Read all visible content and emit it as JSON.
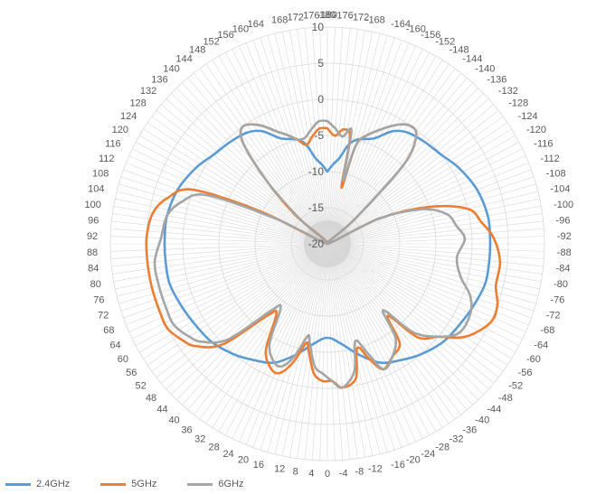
{
  "chart_data": {
    "type": "radar",
    "angular_ticks": [
      -180,
      -176,
      -172,
      -168,
      -164,
      -160,
      -156,
      -152,
      -148,
      -144,
      -140,
      -136,
      -132,
      -128,
      -124,
      -120,
      -116,
      -112,
      -108,
      -104,
      -100,
      -96,
      -92,
      -88,
      -84,
      -80,
      -76,
      -72,
      -68,
      -64,
      -60,
      -56,
      -52,
      -48,
      -44,
      -40,
      -36,
      -32,
      -28,
      -24,
      -20,
      -16,
      -12,
      -8,
      -4,
      0,
      4,
      8,
      12,
      16,
      20,
      24,
      28,
      32,
      36,
      40,
      44,
      48,
      52,
      56,
      60,
      64,
      68,
      72,
      76,
      80,
      84,
      88,
      92,
      96,
      100,
      104,
      108,
      112,
      116,
      120,
      124,
      128,
      132,
      136,
      140,
      144,
      148,
      152,
      156,
      160,
      164,
      168,
      172,
      176,
      180
    ],
    "radial_ticks": [
      -20,
      -15,
      -10,
      -5,
      0,
      5,
      10
    ],
    "rlim": [
      -20,
      10
    ],
    "grid": true,
    "legend_position": "bottom-left",
    "series": [
      {
        "name": "2.4GHz",
        "color": "#5b9bd5",
        "points": [
          [
            -180,
            -10
          ],
          [
            -176,
            -9
          ],
          [
            -172,
            -8
          ],
          [
            -168,
            -6
          ],
          [
            -164,
            -5
          ],
          [
            -156,
            -4
          ],
          [
            -150,
            -2
          ],
          [
            -144,
            -1
          ],
          [
            -136,
            -0.5
          ],
          [
            -128,
            0
          ],
          [
            -120,
            1
          ],
          [
            -110,
            2
          ],
          [
            -100,
            2.5
          ],
          [
            -92,
            2.5
          ],
          [
            -84,
            2.5
          ],
          [
            -76,
            2.5
          ],
          [
            -68,
            2
          ],
          [
            -60,
            1.5
          ],
          [
            -50,
            1
          ],
          [
            -40,
            0
          ],
          [
            -32,
            -1
          ],
          [
            -24,
            -2
          ],
          [
            -16,
            -4
          ],
          [
            -8,
            -6
          ],
          [
            0,
            -7
          ],
          [
            8,
            -6
          ],
          [
            16,
            -4
          ],
          [
            24,
            -2
          ],
          [
            32,
            -1
          ],
          [
            40,
            0
          ],
          [
            50,
            1
          ],
          [
            60,
            1.5
          ],
          [
            68,
            2
          ],
          [
            76,
            2.5
          ],
          [
            84,
            2.5
          ],
          [
            92,
            2.5
          ],
          [
            100,
            2.5
          ],
          [
            110,
            2
          ],
          [
            120,
            1
          ],
          [
            128,
            0
          ],
          [
            136,
            -0.5
          ],
          [
            144,
            -1
          ],
          [
            150,
            -2
          ],
          [
            156,
            -4
          ],
          [
            164,
            -5
          ],
          [
            168,
            -6
          ],
          [
            172,
            -8
          ],
          [
            176,
            -9
          ],
          [
            180,
            -10
          ]
        ]
      },
      {
        "name": "5GHz",
        "color": "#ed7d31",
        "points": [
          [
            -180,
            -4
          ],
          [
            -176,
            -5
          ],
          [
            -172,
            -4
          ],
          [
            -168,
            -5
          ],
          [
            -166,
            -12
          ],
          [
            -164,
            -6
          ],
          [
            -160,
            -4
          ],
          [
            -150,
            -1
          ],
          [
            -144,
            0
          ],
          [
            -140,
            -1
          ],
          [
            -136,
            -5
          ],
          [
            -132,
            -15
          ],
          [
            -124,
            -20
          ],
          [
            -116,
            -12
          ],
          [
            -110,
            -5
          ],
          [
            -104,
            0
          ],
          [
            -98,
            1.5
          ],
          [
            -92,
            3
          ],
          [
            -84,
            4
          ],
          [
            -76,
            4
          ],
          [
            -70,
            5
          ],
          [
            -64,
            5
          ],
          [
            -56,
            3
          ],
          [
            -50,
            0
          ],
          [
            -44,
            -2
          ],
          [
            -40,
            -7
          ],
          [
            -36,
            -3
          ],
          [
            -30,
            -2
          ],
          [
            -24,
            -1
          ],
          [
            -20,
            -3
          ],
          [
            -16,
            -5
          ],
          [
            -12,
            -1
          ],
          [
            -6,
            0
          ],
          [
            -2,
            -1
          ],
          [
            2,
            -1
          ],
          [
            6,
            -2
          ],
          [
            10,
            -5
          ],
          [
            12,
            -6
          ],
          [
            16,
            -3
          ],
          [
            20,
            -1
          ],
          [
            24,
            -1
          ],
          [
            30,
            -3
          ],
          [
            36,
            -8
          ],
          [
            40,
            -7
          ],
          [
            46,
            0
          ],
          [
            52,
            3
          ],
          [
            56,
            4
          ],
          [
            62,
            5
          ],
          [
            68,
            5
          ],
          [
            76,
            5
          ],
          [
            84,
            5
          ],
          [
            92,
            5
          ],
          [
            100,
            4.5
          ],
          [
            106,
            3
          ],
          [
            112,
            0
          ],
          [
            116,
            -10
          ],
          [
            124,
            -20
          ],
          [
            132,
            -14
          ],
          [
            136,
            -8
          ],
          [
            140,
            -2
          ],
          [
            144,
            0
          ],
          [
            150,
            -1
          ],
          [
            156,
            -3
          ],
          [
            160,
            -4
          ],
          [
            164,
            -5
          ],
          [
            168,
            -6
          ],
          [
            172,
            -5
          ],
          [
            176,
            -4
          ],
          [
            180,
            -4
          ]
        ]
      },
      {
        "name": "6GHz",
        "color": "#a5a5a5",
        "points": [
          [
            -180,
            -3
          ],
          [
            -176,
            -4
          ],
          [
            -172,
            -5
          ],
          [
            -168,
            -4
          ],
          [
            -166,
            -11
          ],
          [
            -164,
            -6
          ],
          [
            -160,
            -4
          ],
          [
            -150,
            -1
          ],
          [
            -144,
            0
          ],
          [
            -140,
            -1
          ],
          [
            -136,
            -5
          ],
          [
            -132,
            -15
          ],
          [
            -124,
            -20
          ],
          [
            -116,
            -12
          ],
          [
            -110,
            -6
          ],
          [
            -104,
            -3
          ],
          [
            -98,
            -2
          ],
          [
            -92,
            -1
          ],
          [
            -84,
            -2
          ],
          [
            -76,
            -1
          ],
          [
            -70,
            1
          ],
          [
            -64,
            2
          ],
          [
            -56,
            2
          ],
          [
            -50,
            0
          ],
          [
            -44,
            -3
          ],
          [
            -40,
            -8
          ],
          [
            -36,
            -4
          ],
          [
            -30,
            -2
          ],
          [
            -24,
            -1
          ],
          [
            -20,
            -4
          ],
          [
            -16,
            -6
          ],
          [
            -12,
            -2
          ],
          [
            -6,
            0
          ],
          [
            -2,
            -1
          ],
          [
            2,
            -2
          ],
          [
            6,
            -3
          ],
          [
            10,
            -6
          ],
          [
            12,
            -7
          ],
          [
            16,
            -4
          ],
          [
            20,
            -2
          ],
          [
            24,
            -2
          ],
          [
            30,
            -4
          ],
          [
            36,
            -9
          ],
          [
            40,
            -8
          ],
          [
            46,
            -1
          ],
          [
            52,
            2
          ],
          [
            56,
            3
          ],
          [
            62,
            4
          ],
          [
            68,
            4
          ],
          [
            76,
            4
          ],
          [
            84,
            4
          ],
          [
            92,
            3
          ],
          [
            100,
            2.5
          ],
          [
            106,
            1
          ],
          [
            112,
            -2
          ],
          [
            116,
            -12
          ],
          [
            124,
            -20
          ],
          [
            132,
            -15
          ],
          [
            136,
            -8
          ],
          [
            140,
            -2
          ],
          [
            144,
            0
          ],
          [
            150,
            -1
          ],
          [
            156,
            -3
          ],
          [
            160,
            -4
          ],
          [
            164,
            -5
          ],
          [
            168,
            -5
          ],
          [
            172,
            -4
          ],
          [
            176,
            -3
          ],
          [
            180,
            -3
          ]
        ]
      }
    ]
  }
}
